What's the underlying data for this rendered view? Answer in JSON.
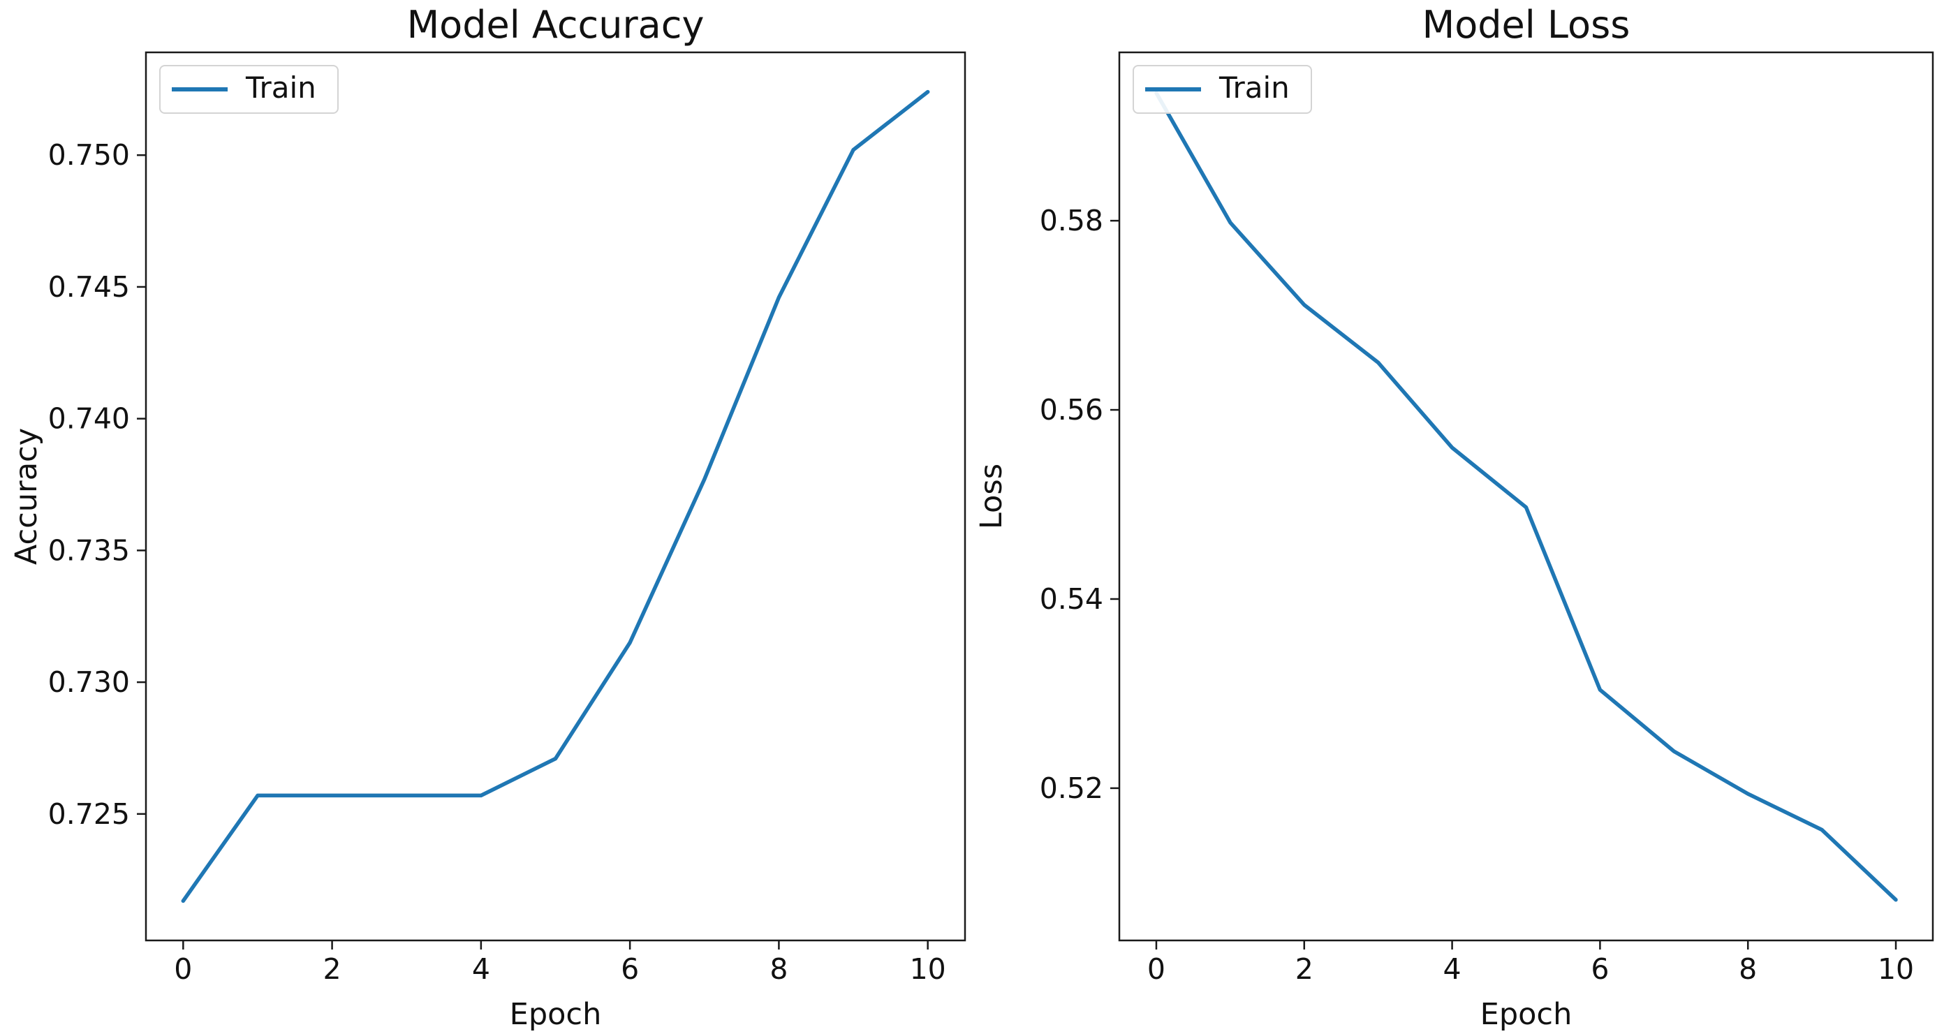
{
  "figure": {
    "background": "#ffffff",
    "text_color": "#111111",
    "spine_color": "#1a1a1a"
  },
  "chart_data": [
    {
      "type": "line",
      "title": "Model Accuracy",
      "xlabel": "Epoch",
      "ylabel": "Accuracy",
      "legend_location": "upper left",
      "grid": false,
      "x": [
        0,
        1,
        2,
        3,
        4,
        5,
        6,
        7,
        8,
        9,
        10
      ],
      "series": [
        {
          "name": "Train",
          "color": "#1f77b4",
          "values": [
            0.7217,
            0.7257,
            0.7257,
            0.7257,
            0.7257,
            0.7271,
            0.7315,
            0.7377,
            0.7446,
            0.7502,
            0.7524
          ]
        }
      ],
      "xlim": [
        -0.5,
        10.5
      ],
      "ylim": [
        0.7202,
        0.7539
      ],
      "xtick_values": [
        0,
        2,
        4,
        6,
        8,
        10
      ],
      "xtick_labels": [
        "0",
        "2",
        "4",
        "6",
        "8",
        "10"
      ],
      "ytick_values": [
        0.725,
        0.73,
        0.735,
        0.74,
        0.745,
        0.75
      ],
      "ytick_labels": [
        "0.725",
        "0.730",
        "0.735",
        "0.740",
        "0.745",
        "0.750"
      ]
    },
    {
      "type": "line",
      "title": "Model Loss",
      "xlabel": "Epoch",
      "ylabel": "Loss",
      "legend_location": "upper left",
      "grid": false,
      "x": [
        0,
        1,
        2,
        3,
        4,
        5,
        6,
        7,
        8,
        9,
        10
      ],
      "series": [
        {
          "name": "Train",
          "color": "#1f77b4",
          "values": [
            0.5935,
            0.5798,
            0.5711,
            0.565,
            0.556,
            0.5497,
            0.5304,
            0.5239,
            0.5194,
            0.5156,
            0.5082
          ]
        }
      ],
      "xlim": [
        -0.5,
        10.5
      ],
      "ylim": [
        0.5039,
        0.5978
      ],
      "xtick_values": [
        0,
        2,
        4,
        6,
        8,
        10
      ],
      "xtick_labels": [
        "0",
        "2",
        "4",
        "6",
        "8",
        "10"
      ],
      "ytick_values": [
        0.52,
        0.54,
        0.56,
        0.58
      ],
      "ytick_labels": [
        "0.52",
        "0.54",
        "0.56",
        "0.58"
      ]
    }
  ]
}
